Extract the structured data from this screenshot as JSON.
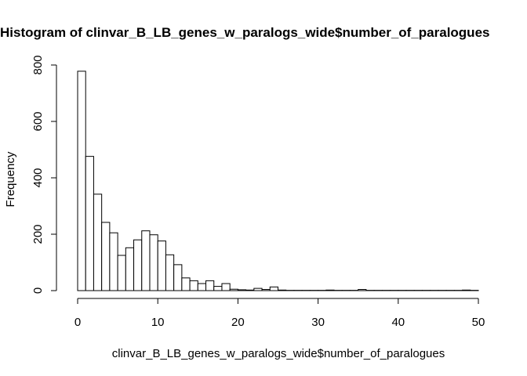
{
  "chart_data": {
    "type": "bar",
    "title": "Histogram of clinvar_B_LB_genes_w_paralogs_wide$number_of_paralogues",
    "xlabel": "clinvar_B_LB_genes_w_paralogs_wide$number_of_paralogues",
    "ylabel": "Frequency",
    "xlim": [
      0,
      50
    ],
    "ylim": [
      0,
      800
    ],
    "x_ticks": [
      0,
      10,
      20,
      30,
      40,
      50
    ],
    "y_ticks": [
      0,
      200,
      400,
      600,
      800
    ],
    "bin_width": 1,
    "bin_starts": [
      0,
      1,
      2,
      3,
      4,
      5,
      6,
      7,
      8,
      9,
      10,
      11,
      12,
      13,
      14,
      15,
      16,
      17,
      18,
      19,
      20,
      21,
      22,
      23,
      24,
      25,
      26,
      27,
      28,
      29,
      30,
      31,
      32,
      33,
      34,
      35,
      36,
      37,
      38,
      39,
      40,
      41,
      42,
      43,
      44,
      45,
      46,
      47,
      48,
      49
    ],
    "values": [
      778,
      476,
      342,
      242,
      205,
      125,
      152,
      180,
      212,
      198,
      176,
      127,
      92,
      45,
      35,
      25,
      35,
      15,
      25,
      5,
      3,
      2,
      8,
      4,
      13,
      2,
      1,
      1,
      1,
      1,
      1,
      2,
      1,
      1,
      1,
      4,
      1,
      1,
      1,
      1,
      1,
      1,
      1,
      1,
      1,
      1,
      1,
      1,
      2,
      1
    ],
    "grid": false,
    "legend": "none"
  }
}
